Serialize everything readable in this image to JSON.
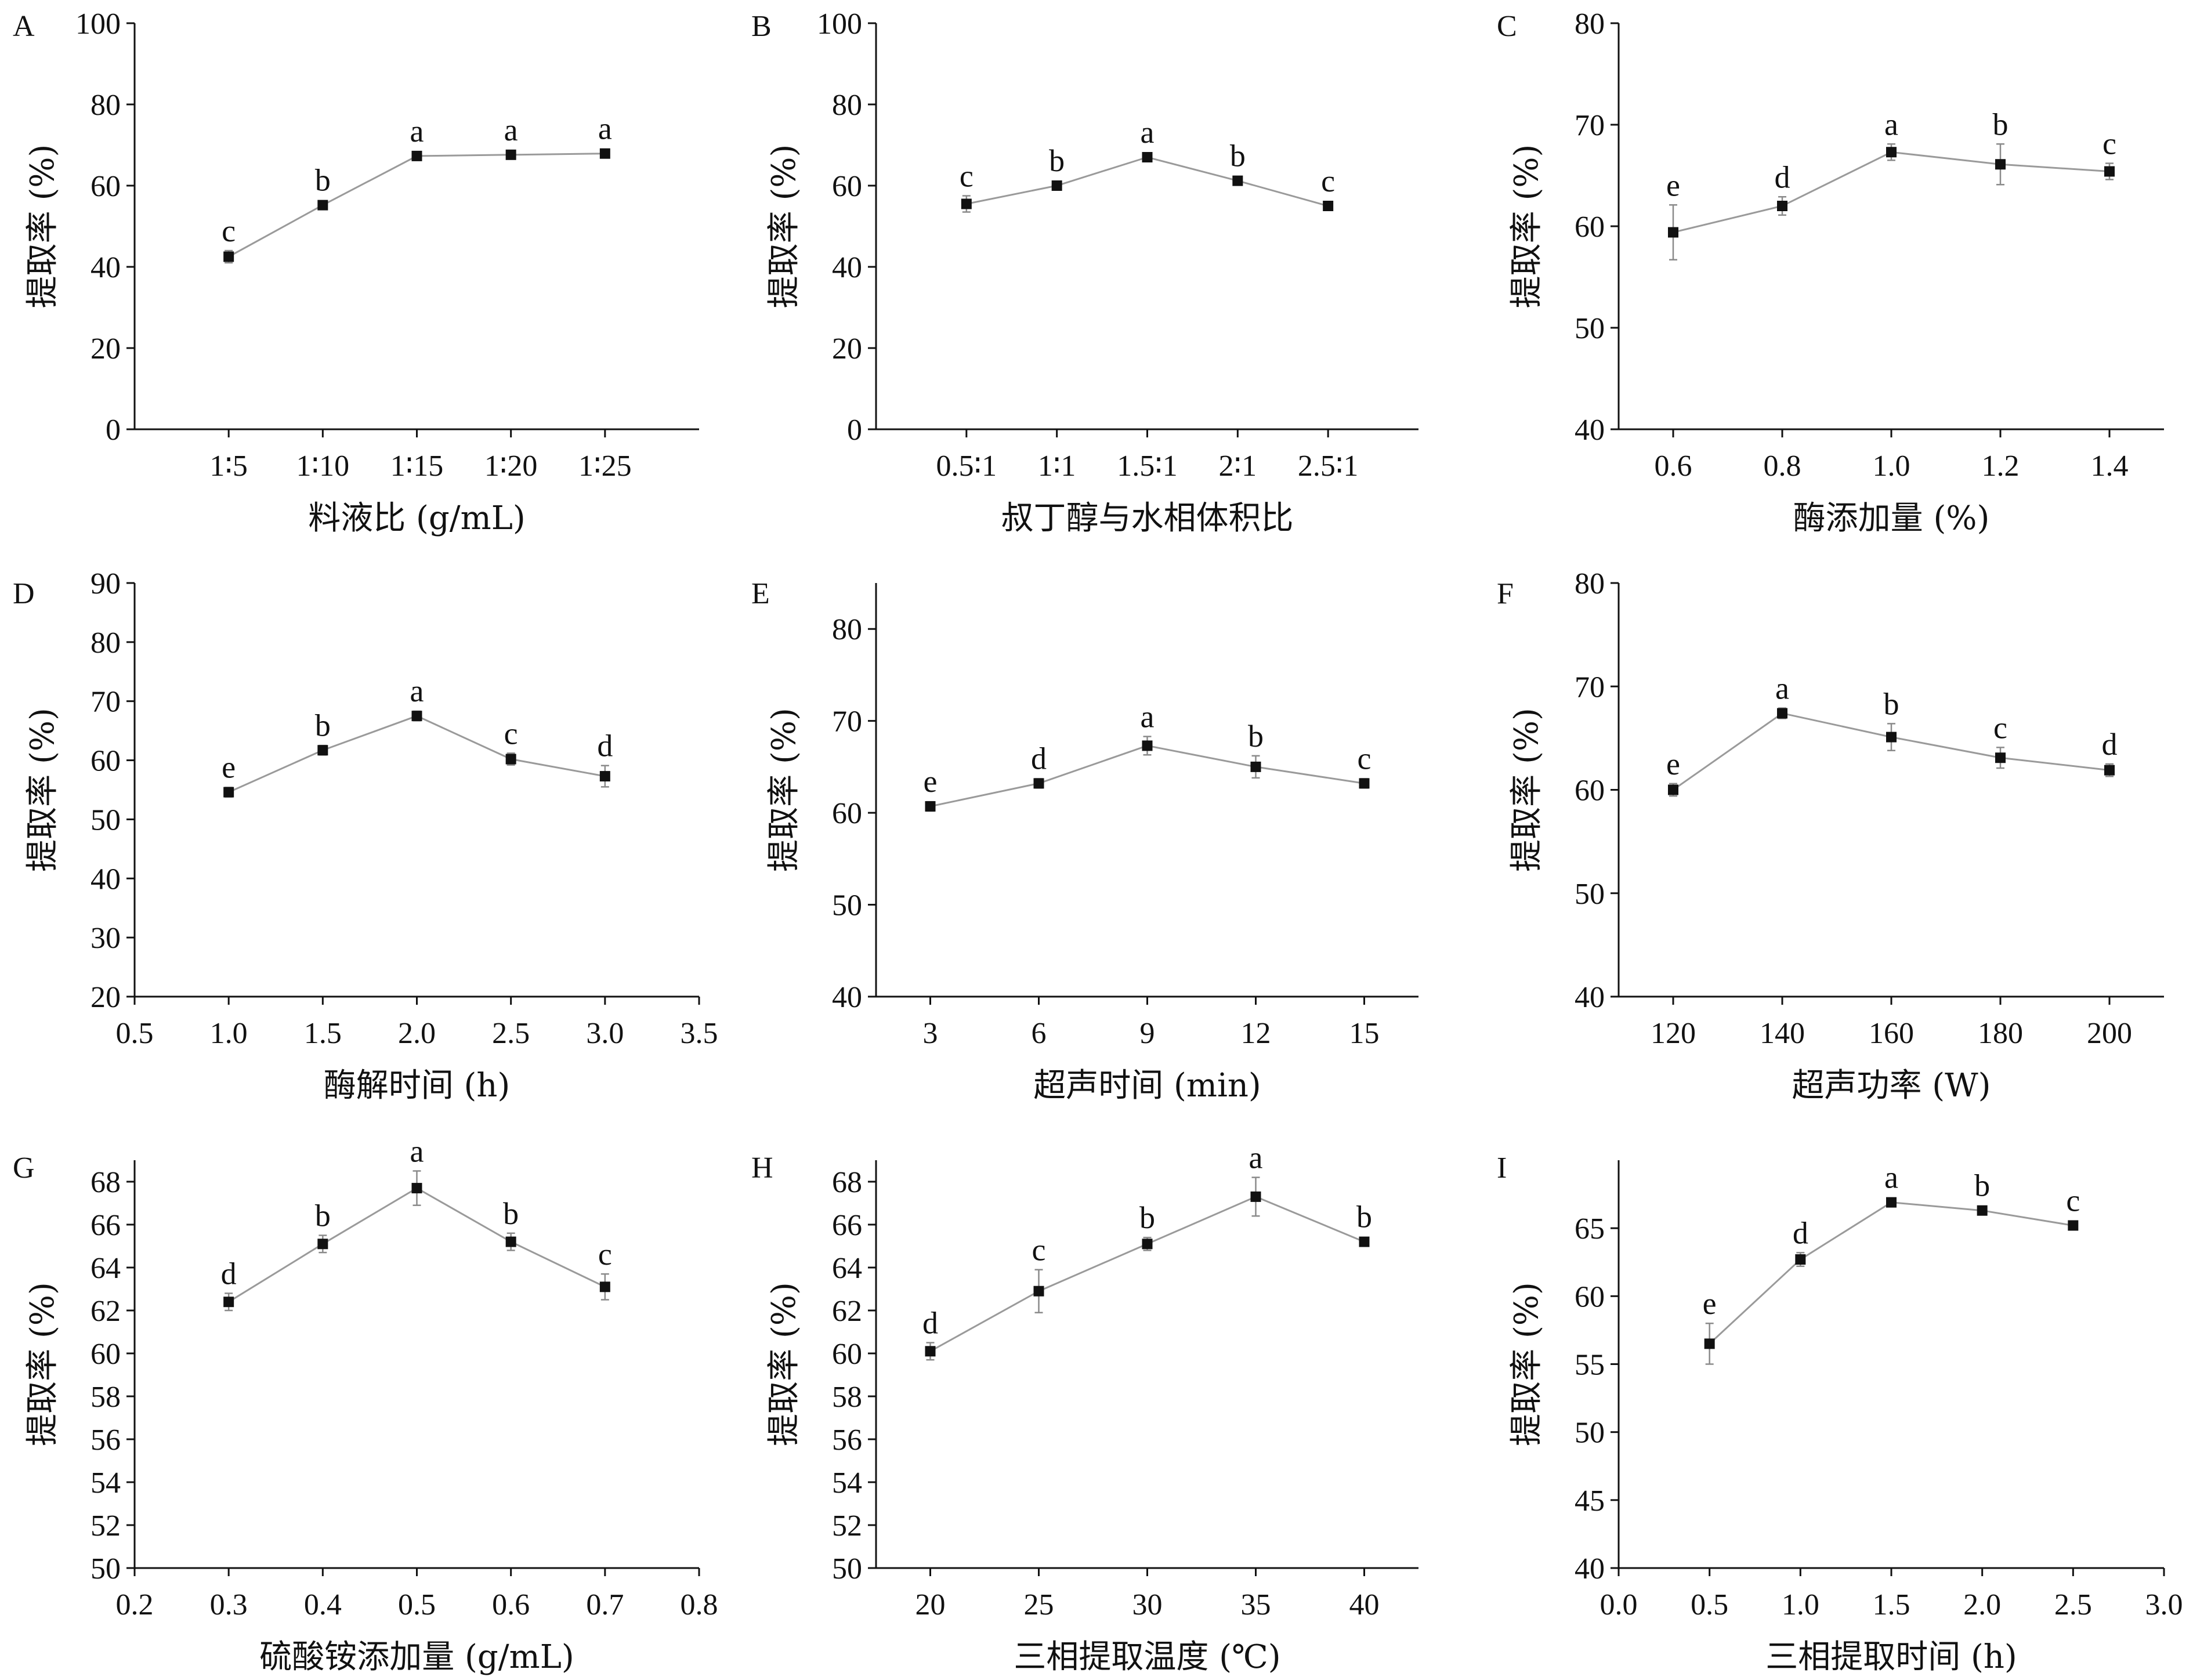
{
  "figure": {
    "panels": [
      {
        "letter": "A",
        "chart_data": {
          "type": "line",
          "xlabel": "料液比 (g/mL)",
          "ylabel": "提取率 (%)",
          "x_scale": "categorical",
          "categories": [
            "1∶5",
            "1∶10",
            "1∶15",
            "1∶20",
            "1∶25"
          ],
          "x_tick_labels": [
            "1∶5",
            "1∶10",
            "1∶15",
            "1∶20",
            "1∶25"
          ],
          "ylim": [
            0,
            100
          ],
          "y_ticks": [
            0,
            20,
            40,
            60,
            80,
            100
          ],
          "series": [
            {
              "values": [
                42.5,
                55.2,
                67.3,
                67.6,
                67.9
              ],
              "errors": [
                1.5,
                1.0,
                0.8,
                0.8,
                0.6
              ],
              "labels": [
                "c",
                "b",
                "a",
                "a",
                "a"
              ]
            }
          ]
        }
      },
      {
        "letter": "B",
        "chart_data": {
          "type": "line",
          "xlabel": "叔丁醇与水相体积比",
          "ylabel": "提取率 (%)",
          "x_scale": "categorical",
          "categories": [
            "0.5∶1",
            "1∶1",
            "1.5∶1",
            "2∶1",
            "2.5∶1"
          ],
          "x_tick_labels": [
            "0.5∶1",
            "1∶1",
            "1.5∶1",
            "2∶1",
            "2.5∶1"
          ],
          "ylim": [
            0,
            100
          ],
          "y_ticks": [
            0,
            20,
            40,
            60,
            80,
            100
          ],
          "series": [
            {
              "values": [
                55.5,
                60.0,
                67.0,
                61.2,
                55.0
              ],
              "errors": [
                2.0,
                1.0,
                0.8,
                0.8,
                0.8
              ],
              "labels": [
                "c",
                "b",
                "a",
                "b",
                "c"
              ]
            }
          ]
        }
      },
      {
        "letter": "C",
        "chart_data": {
          "type": "line",
          "xlabel": "酶添加量 (%)",
          "ylabel": "提取率 (%)",
          "x_scale": "numeric",
          "x": [
            0.6,
            0.8,
            1.0,
            1.2,
            1.4
          ],
          "xlim": [
            0.5,
            1.5
          ],
          "x_ticks": [
            0.6,
            0.8,
            1.0,
            1.2,
            1.4
          ],
          "x_tick_labels": [
            "0.6",
            "0.8",
            "1.0",
            "1.2",
            "1.4"
          ],
          "ylim": [
            40,
            80
          ],
          "y_ticks": [
            40,
            50,
            60,
            70,
            80
          ],
          "series": [
            {
              "values": [
                59.4,
                62.0,
                67.3,
                66.1,
                65.4
              ],
              "errors": [
                2.7,
                0.9,
                0.8,
                2.0,
                0.8
              ],
              "labels": [
                "e",
                "d",
                "a",
                "b",
                "c"
              ]
            }
          ]
        }
      },
      {
        "letter": "D",
        "chart_data": {
          "type": "line",
          "xlabel": "酶解时间 (h)",
          "ylabel": "提取率 (%)",
          "x_scale": "numeric",
          "x": [
            1.0,
            1.5,
            2.0,
            2.5,
            3.0
          ],
          "xlim": [
            0.5,
            3.5
          ],
          "x_ticks": [
            0.5,
            1.0,
            1.5,
            2.0,
            2.5,
            3.0,
            3.5
          ],
          "x_tick_labels": [
            "0.5",
            "1.0",
            "1.5",
            "2.0",
            "2.5",
            "3.0",
            "3.5"
          ],
          "ylim": [
            20,
            90
          ],
          "y_ticks": [
            20,
            30,
            40,
            50,
            60,
            70,
            80,
            90
          ],
          "series": [
            {
              "values": [
                54.6,
                61.7,
                67.5,
                60.2,
                57.3
              ],
              "errors": [
                0.8,
                0.8,
                0.8,
                1.0,
                1.8
              ],
              "labels": [
                "e",
                "b",
                "a",
                "c",
                "d"
              ]
            }
          ]
        }
      },
      {
        "letter": "E",
        "chart_data": {
          "type": "line",
          "xlabel": "超声时间 (min)",
          "ylabel": "提取率 (%)",
          "x_scale": "numeric",
          "x": [
            3,
            6,
            9,
            12,
            15
          ],
          "xlim": [
            1.5,
            16.5
          ],
          "x_ticks": [
            3,
            6,
            9,
            12,
            15
          ],
          "x_tick_labels": [
            "3",
            "6",
            "9",
            "12",
            "15"
          ],
          "ylim": [
            40,
            85
          ],
          "y_ticks": [
            40,
            50,
            60,
            70,
            80
          ],
          "series": [
            {
              "values": [
                60.7,
                63.2,
                67.3,
                65.0,
                63.2
              ],
              "errors": [
                0.5,
                0.5,
                1.0,
                1.2,
                0.5
              ],
              "labels": [
                "e",
                "d",
                "a",
                "b",
                "c"
              ]
            }
          ]
        }
      },
      {
        "letter": "F",
        "chart_data": {
          "type": "line",
          "xlabel": "超声功率 (W)",
          "ylabel": "提取率 (%)",
          "x_scale": "numeric",
          "x": [
            120,
            140,
            160,
            180,
            200
          ],
          "xlim": [
            110,
            210
          ],
          "x_ticks": [
            120,
            140,
            160,
            180,
            200
          ],
          "x_tick_labels": [
            "120",
            "140",
            "160",
            "180",
            "200"
          ],
          "ylim": [
            40,
            80
          ],
          "y_ticks": [
            40,
            50,
            60,
            70,
            80
          ],
          "series": [
            {
              "values": [
                60.0,
                67.4,
                65.1,
                63.1,
                61.9
              ],
              "errors": [
                0.6,
                0.5,
                1.3,
                1.0,
                0.6
              ],
              "labels": [
                "e",
                "a",
                "b",
                "c",
                "d"
              ]
            }
          ]
        }
      },
      {
        "letter": "G",
        "chart_data": {
          "type": "line",
          "xlabel": "硫酸铵添加量 (g/mL)",
          "ylabel": "提取率 (%)",
          "x_scale": "numeric",
          "x": [
            0.3,
            0.4,
            0.5,
            0.6,
            0.7
          ],
          "xlim": [
            0.2,
            0.8
          ],
          "x_ticks": [
            0.2,
            0.3,
            0.4,
            0.5,
            0.6,
            0.7,
            0.8
          ],
          "x_tick_labels": [
            "0.2",
            "0.3",
            "0.4",
            "0.5",
            "0.6",
            "0.7",
            "0.8"
          ],
          "ylim": [
            50,
            69
          ],
          "y_ticks": [
            50,
            52,
            54,
            56,
            58,
            60,
            62,
            64,
            66,
            68
          ],
          "series": [
            {
              "values": [
                62.4,
                65.1,
                67.7,
                65.2,
                63.1
              ],
              "errors": [
                0.4,
                0.4,
                0.8,
                0.4,
                0.6
              ],
              "labels": [
                "d",
                "b",
                "a",
                "b",
                "c"
              ]
            }
          ]
        }
      },
      {
        "letter": "H",
        "chart_data": {
          "type": "line",
          "xlabel": "三相提取温度 (℃)",
          "ylabel": "提取率 (%)",
          "x_scale": "numeric",
          "x": [
            20,
            25,
            30,
            35,
            40
          ],
          "xlim": [
            17.5,
            42.5
          ],
          "x_ticks": [
            20,
            25,
            30,
            35,
            40
          ],
          "x_tick_labels": [
            "20",
            "25",
            "30",
            "35",
            "40"
          ],
          "ylim": [
            50,
            69
          ],
          "y_ticks": [
            50,
            52,
            54,
            56,
            58,
            60,
            62,
            64,
            66,
            68
          ],
          "series": [
            {
              "values": [
                60.1,
                62.9,
                65.1,
                67.3,
                65.2
              ],
              "errors": [
                0.4,
                1.0,
                0.3,
                0.9,
                0.2
              ],
              "labels": [
                "d",
                "c",
                "b",
                "a",
                "b"
              ]
            }
          ]
        }
      },
      {
        "letter": "I",
        "chart_data": {
          "type": "line",
          "xlabel": "三相提取时间 (h)",
          "ylabel": "提取率 (%)",
          "x_scale": "numeric",
          "x": [
            0.5,
            1.0,
            1.5,
            2.0,
            2.5
          ],
          "xlim": [
            0.0,
            3.0
          ],
          "x_ticks": [
            0.0,
            0.5,
            1.0,
            1.5,
            2.0,
            2.5,
            3.0
          ],
          "x_tick_labels": [
            "0.0",
            "0.5",
            "1.0",
            "1.5",
            "2.0",
            "2.5",
            "3.0"
          ],
          "ylim": [
            40,
            70
          ],
          "y_ticks": [
            40,
            45,
            50,
            55,
            60,
            65
          ],
          "series": [
            {
              "values": [
                56.5,
                62.7,
                66.9,
                66.3,
                65.2
              ],
              "errors": [
                1.5,
                0.5,
                0.3,
                0.3,
                0.3
              ],
              "labels": [
                "e",
                "d",
                "a",
                "b",
                "c"
              ]
            }
          ]
        }
      }
    ]
  },
  "style": {
    "line_color": "#9a9a9a",
    "marker_color": "#111111",
    "axis_color": "#111111",
    "error_bar_color": "#8a8a8a"
  }
}
